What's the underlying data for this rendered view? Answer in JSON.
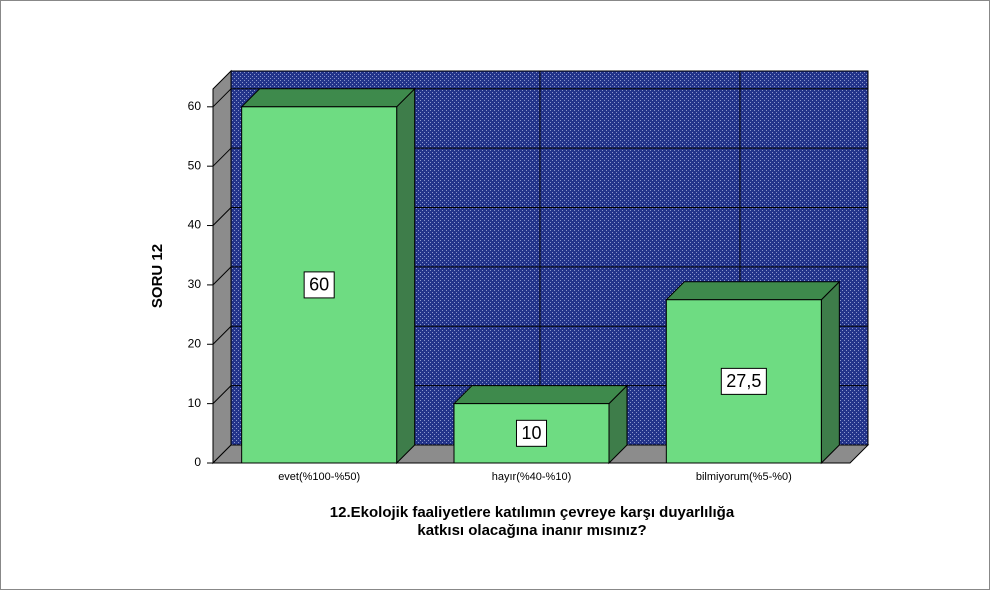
{
  "chart_data": {
    "type": "bar3d",
    "ylabel": "SORU 12",
    "xlabel": [
      "12.Ekolojik faaliyetlere katılımın çevreye karşı duyarlılığa",
      "katkısı olacağına inanır mısınız?"
    ],
    "categories": [
      "evet(%100-%50)",
      "hayır(%40-%10)",
      "bilmiyorum(%5-%0)"
    ],
    "values": [
      60,
      10,
      27.5
    ],
    "value_labels": [
      "60",
      "10",
      "27,5"
    ],
    "color": "#6edc82",
    "ylim": [
      0,
      63
    ],
    "yticks": [
      0,
      10,
      20,
      30,
      40,
      50,
      60
    ],
    "grid": true
  }
}
